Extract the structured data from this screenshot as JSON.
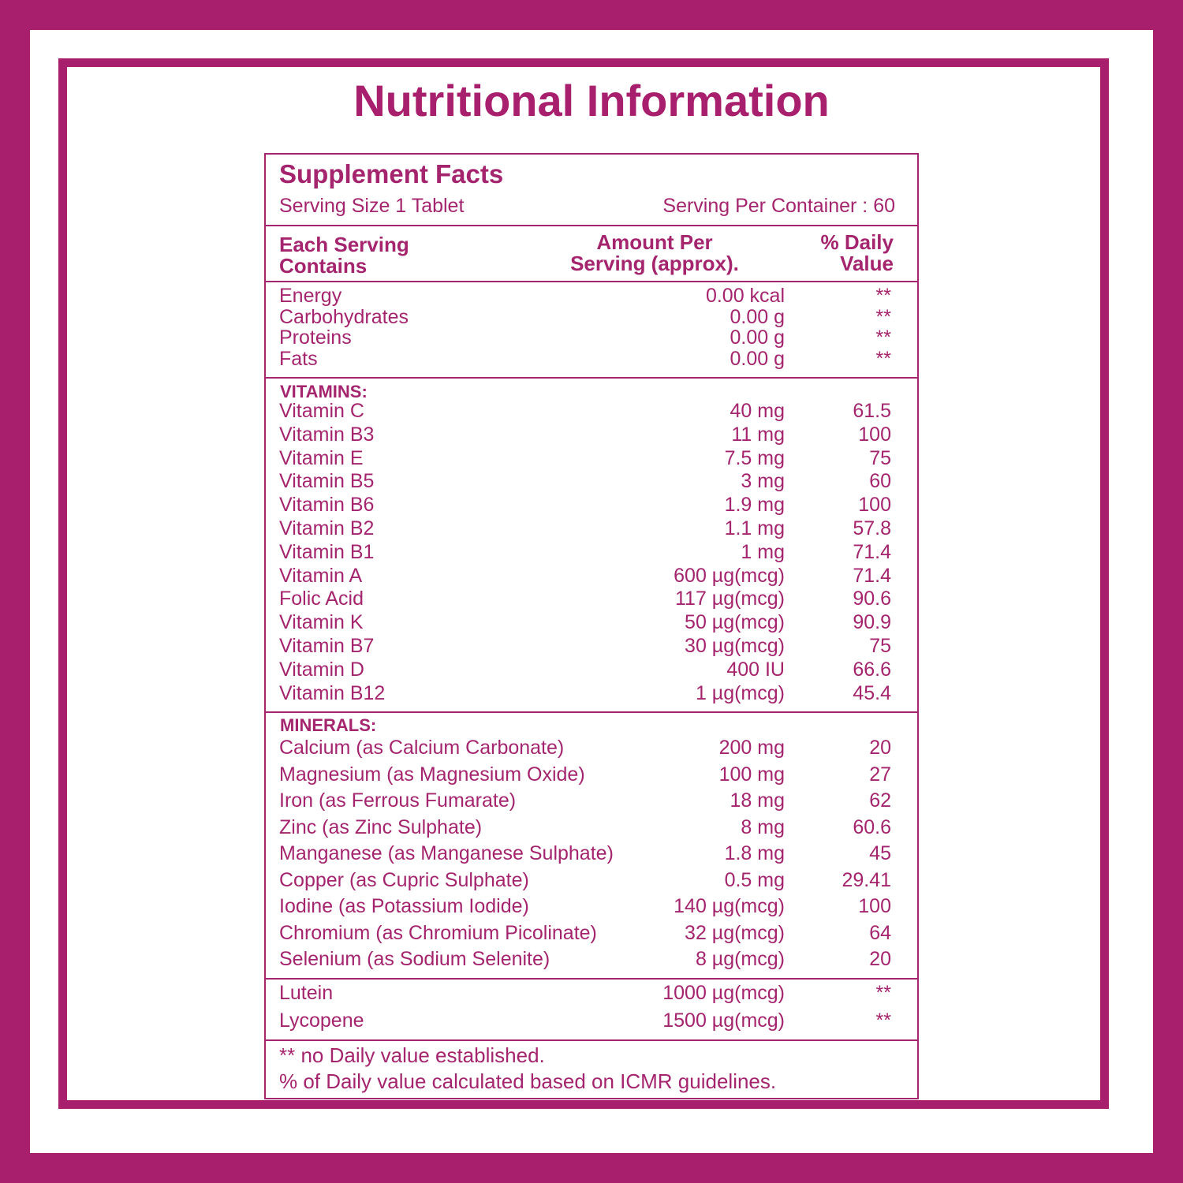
{
  "title": "Nutritional Information",
  "facts": {
    "title": "Supplement Facts",
    "serving_size": "Serving Size 1 Tablet",
    "servings_per_container": "Serving Per Container : 60",
    "columns": [
      [
        "Each Serving",
        "Contains"
      ],
      [
        "Amount Per",
        "Serving (approx)."
      ],
      [
        "% Daily",
        "Value"
      ]
    ],
    "sections": [
      {
        "rows": [
          [
            "Energy",
            "0.00 kcal",
            "**"
          ],
          [
            "Carbohydrates",
            "0.00 g",
            "**"
          ],
          [
            "Proteins",
            "0.00 g",
            "**"
          ],
          [
            "Fats",
            "0.00 g",
            "**"
          ]
        ]
      },
      {
        "heading": "VITAMINS:",
        "rows": [
          [
            "Vitamin C",
            "40 mg",
            "61.5"
          ],
          [
            "Vitamin B3",
            "11 mg",
            "100"
          ],
          [
            "Vitamin E",
            "7.5 mg",
            "75"
          ],
          [
            "Vitamin B5",
            "3 mg",
            "60"
          ],
          [
            "Vitamin B6",
            "1.9 mg",
            "100"
          ],
          [
            "Vitamin B2",
            "1.1 mg",
            "57.8"
          ],
          [
            "Vitamin B1",
            "1 mg",
            "71.4"
          ],
          [
            "Vitamin A",
            "600 µg(mcg)",
            "71.4"
          ],
          [
            "Folic Acid",
            "117 µg(mcg)",
            "90.6"
          ],
          [
            "Vitamin K",
            "50 µg(mcg)",
            "90.9"
          ],
          [
            "Vitamin B7",
            "30 µg(mcg)",
            "75"
          ],
          [
            "Vitamin D",
            "400 IU",
            "66.6"
          ],
          [
            "Vitamin B12",
            "1 µg(mcg)",
            "45.4"
          ]
        ]
      },
      {
        "heading": "MINERALS:",
        "rows": [
          [
            "Calcium (as Calcium Carbonate)",
            "200 mg",
            "20"
          ],
          [
            "Magnesium (as Magnesium Oxide)",
            "100 mg",
            "27"
          ],
          [
            "Iron (as Ferrous Fumarate)",
            "18 mg",
            "62"
          ],
          [
            "Zinc (as Zinc Sulphate)",
            "8 mg",
            "60.6"
          ],
          [
            "Manganese (as Manganese Sulphate)",
            "1.8 mg",
            "45"
          ],
          [
            "Copper (as Cupric Sulphate)",
            "0.5 mg",
            "29.41"
          ],
          [
            "Iodine (as Potassium Iodide)",
            "140 µg(mcg)",
            "100"
          ],
          [
            "Chromium (as Chromium Picolinate)",
            "32 µg(mcg)",
            "64"
          ],
          [
            "Selenium (as Sodium Selenite)",
            "8 µg(mcg)",
            "20"
          ]
        ]
      },
      {
        "rows": [
          [
            "Lutein",
            "1000 µg(mcg)",
            "**"
          ],
          [
            "Lycopene",
            "1500 µg(mcg)",
            "**"
          ]
        ]
      }
    ],
    "footnotes": [
      "** no Daily value established.",
      "% of Daily value calculated based on ICMR guidelines."
    ]
  }
}
